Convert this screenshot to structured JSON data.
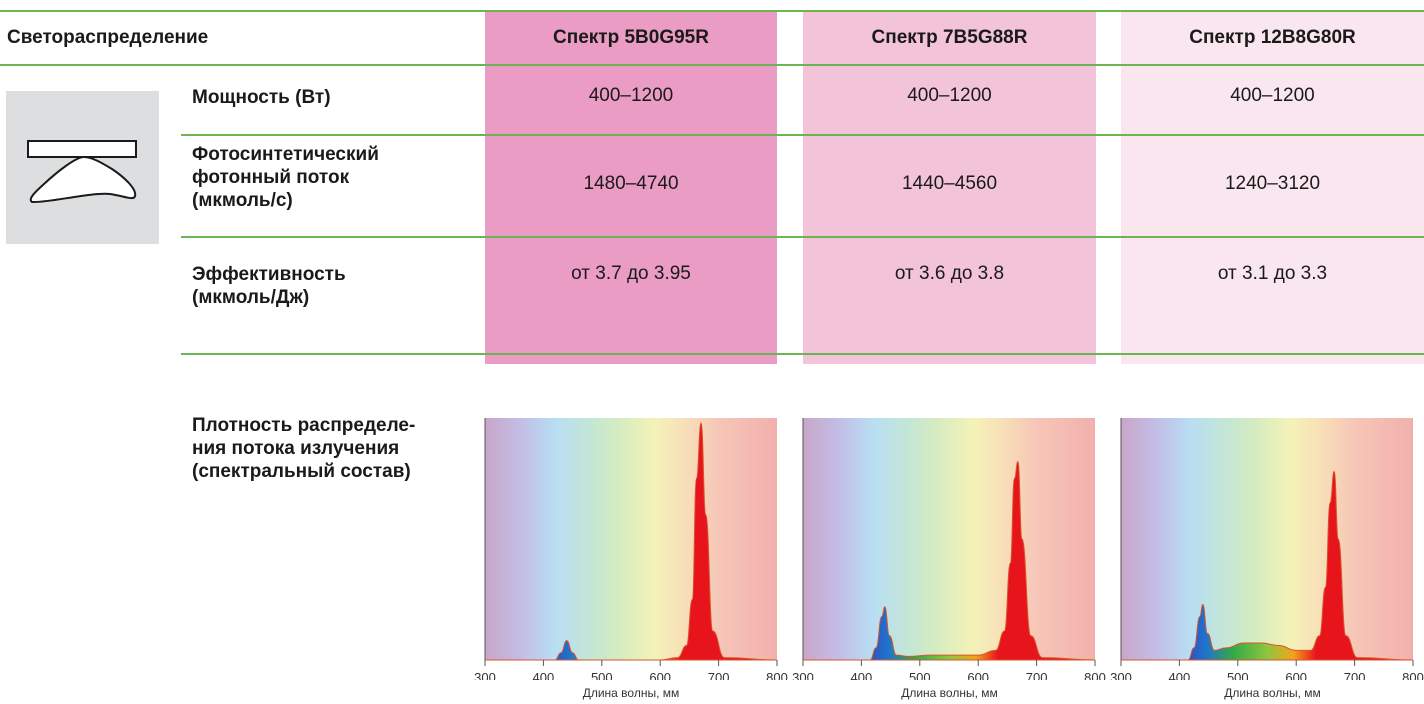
{
  "header": {
    "title": "Светораспределение",
    "columns": [
      "Спектр 5B0G95R",
      "Спектр 7B5G88R",
      "Спектр 12B8G80R"
    ]
  },
  "rows": [
    {
      "label": "Мощность (Вт)",
      "values": [
        "400–1200",
        "400–1200",
        "400–1200"
      ]
    },
    {
      "label": "Фотосинтетический фотонный поток (мкмоль/с)",
      "label_lines": [
        "Фотосинтетический",
        "фотонный поток",
        "(мкмоль/с)"
      ],
      "values": [
        "1480–4740",
        "1440–4560",
        "1240–3120"
      ]
    },
    {
      "label": "Эффективность (мкмоль/Дж)",
      "label_lines": [
        "Эффективность",
        "(мкмоль/Дж)"
      ],
      "values": [
        "от 3.7 до 3.95",
        "от 3.6 до 3.8",
        "от 3.1 до 3.3"
      ]
    }
  ],
  "spectrum_label_lines": [
    "Плотность распределе-",
    "ния потока излучения",
    "(спектральный состав)"
  ],
  "colors": {
    "col1": "#eb9cc4",
    "col2": "#f3c3da",
    "col3": "#fae6ef",
    "rule": "#6cb552",
    "icon_bg": "#dcdedf",
    "peak_red": "#e8141c"
  },
  "icon": "light-distribution-icon",
  "chart_data": [
    {
      "type": "area",
      "xlabel": "Длина волны, мм",
      "xticks": [
        300,
        400,
        500,
        600,
        700,
        800
      ],
      "xlim": [
        300,
        800
      ],
      "ylim": [
        0,
        1
      ],
      "x": [
        300,
        420,
        430,
        440,
        450,
        460,
        480,
        600,
        630,
        645,
        655,
        662,
        670,
        678,
        690,
        710,
        800
      ],
      "y": [
        0,
        0,
        0.03,
        0.08,
        0.03,
        0,
        0,
        0,
        0.01,
        0.06,
        0.25,
        0.75,
        0.98,
        0.6,
        0.12,
        0.01,
        0
      ]
    },
    {
      "type": "area",
      "xlabel": "Длина волны, мм",
      "xticks": [
        300,
        400,
        500,
        600,
        700,
        800
      ],
      "xlim": [
        300,
        800
      ],
      "ylim": [
        0,
        1
      ],
      "x": [
        300,
        415,
        425,
        435,
        440,
        448,
        460,
        480,
        520,
        560,
        600,
        630,
        645,
        655,
        662,
        668,
        675,
        690,
        710,
        800
      ],
      "y": [
        0,
        0,
        0.05,
        0.18,
        0.22,
        0.1,
        0.02,
        0.015,
        0.02,
        0.02,
        0.02,
        0.04,
        0.12,
        0.4,
        0.75,
        0.82,
        0.5,
        0.1,
        0.01,
        0
      ]
    },
    {
      "type": "area",
      "xlabel": "Длина волны, мм",
      "xticks": [
        300,
        400,
        500,
        600,
        700,
        800
      ],
      "xlim": [
        300,
        800
      ],
      "ylim": [
        0,
        1
      ],
      "x": [
        300,
        415,
        425,
        435,
        440,
        448,
        460,
        480,
        510,
        540,
        570,
        600,
        625,
        640,
        650,
        658,
        665,
        672,
        685,
        705,
        800
      ],
      "y": [
        0,
        0,
        0.05,
        0.18,
        0.23,
        0.11,
        0.04,
        0.05,
        0.07,
        0.07,
        0.06,
        0.04,
        0.04,
        0.1,
        0.3,
        0.65,
        0.78,
        0.5,
        0.1,
        0.01,
        0
      ]
    }
  ]
}
